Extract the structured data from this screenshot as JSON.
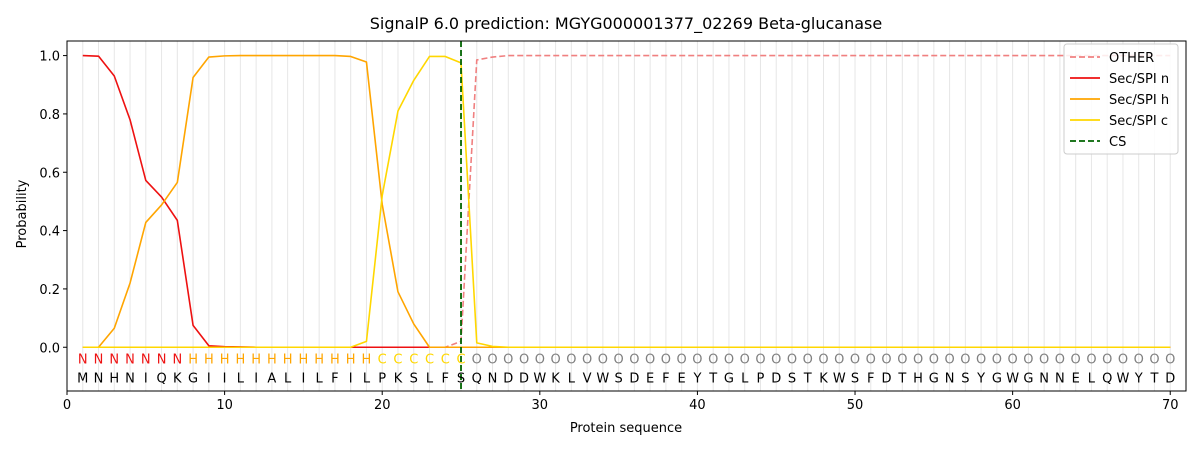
{
  "chart_data": {
    "type": "line",
    "title": "SignalP 6.0 prediction: MGYG000001377_02269 Beta-glucanase",
    "xlabel": "Protein sequence",
    "ylabel": "Probability",
    "xlim": [
      0,
      71
    ],
    "ylim": [
      -0.15,
      1.05
    ],
    "xticks": [
      0,
      10,
      20,
      30,
      40,
      50,
      60,
      70
    ],
    "yticks": [
      0.0,
      0.2,
      0.4,
      0.6,
      0.8,
      1.0
    ],
    "legend_position": "top-right",
    "sequence": [
      "M",
      "N",
      "H",
      "N",
      "I",
      "Q",
      "K",
      "G",
      "I",
      "I",
      "L",
      "I",
      "A",
      "L",
      "I",
      "L",
      "F",
      "I",
      "L",
      "P",
      "K",
      "S",
      "L",
      "F",
      "S",
      "Q",
      "N",
      "D",
      "D",
      "W",
      "K",
      "L",
      "V",
      "W",
      "S",
      "D",
      "E",
      "F",
      "E",
      "Y",
      "T",
      "G",
      "L",
      "P",
      "D",
      "S",
      "T",
      "K",
      "W",
      "S",
      "F",
      "D",
      "T",
      "H",
      "G",
      "N",
      "S",
      "Y",
      "G",
      "W",
      "G",
      "N",
      "N",
      "E",
      "L",
      "Q",
      "W",
      "Y",
      "T",
      "D"
    ],
    "labels": [
      "N",
      "N",
      "N",
      "N",
      "N",
      "N",
      "N",
      "H",
      "H",
      "H",
      "H",
      "H",
      "H",
      "H",
      "H",
      "H",
      "H",
      "H",
      "H",
      "C",
      "C",
      "C",
      "C",
      "C",
      "C",
      "O",
      "O",
      "O",
      "O",
      "O",
      "O",
      "O",
      "O",
      "O",
      "O",
      "O",
      "O",
      "O",
      "O",
      "O",
      "O",
      "O",
      "O",
      "O",
      "O",
      "O",
      "O",
      "O",
      "O",
      "O",
      "O",
      "O",
      "O",
      "O",
      "O",
      "O",
      "O",
      "O",
      "O",
      "O",
      "O",
      "O",
      "O",
      "O",
      "O",
      "O",
      "O",
      "O",
      "O",
      "O"
    ],
    "label_colors": {
      "N": "#ee1111",
      "H": "#ffa500",
      "C": "#ffd700",
      "O": "#808080"
    },
    "series": [
      {
        "name": "OTHER",
        "color": "#f08080",
        "dash": "dashed",
        "values": [
          0,
          0,
          0,
          0,
          0,
          0,
          0,
          0,
          0,
          0,
          0,
          0,
          0,
          0,
          0,
          0,
          0,
          0,
          0,
          0,
          0,
          0,
          0,
          0,
          0.02,
          0.985,
          0.995,
          1,
          1,
          1,
          1,
          1,
          1,
          1,
          1,
          1,
          1,
          1,
          1,
          1,
          1,
          1,
          1,
          1,
          1,
          1,
          1,
          1,
          1,
          1,
          1,
          1,
          1,
          1,
          1,
          1,
          1,
          1,
          1,
          1,
          1,
          1,
          1,
          1,
          1,
          1,
          1,
          1,
          1,
          1
        ]
      },
      {
        "name": "Sec/SPI n",
        "color": "#ee1111",
        "dash": "solid",
        "values": [
          1,
          0.998,
          0.93,
          0.78,
          0.572,
          0.515,
          0.435,
          0.075,
          0.005,
          0.002,
          0.001,
          0,
          0,
          0,
          0,
          0,
          0,
          0,
          0,
          0,
          0,
          0,
          0,
          0,
          0,
          0,
          0,
          0,
          0,
          0,
          0,
          0,
          0,
          0,
          0,
          0,
          0,
          0,
          0,
          0,
          0,
          0,
          0,
          0,
          0,
          0,
          0,
          0,
          0,
          0,
          0,
          0,
          0,
          0,
          0,
          0,
          0,
          0,
          0,
          0,
          0,
          0,
          0,
          0,
          0,
          0,
          0,
          0,
          0,
          0
        ]
      },
      {
        "name": "Sec/SPI h",
        "color": "#ffa500",
        "dash": "solid",
        "values": [
          0,
          0,
          0.065,
          0.22,
          0.428,
          0.488,
          0.565,
          0.925,
          0.995,
          0.999,
          1,
          1,
          1,
          1,
          1,
          1,
          1,
          0.997,
          0.978,
          0.49,
          0.19,
          0.08,
          0,
          0,
          0,
          0,
          0,
          0,
          0,
          0,
          0,
          0,
          0,
          0,
          0,
          0,
          0,
          0,
          0,
          0,
          0,
          0,
          0,
          0,
          0,
          0,
          0,
          0,
          0,
          0,
          0,
          0,
          0,
          0,
          0,
          0,
          0,
          0,
          0,
          0,
          0,
          0,
          0,
          0,
          0,
          0,
          0,
          0,
          0,
          0
        ]
      },
      {
        "name": "Sec/SPI c",
        "color": "#ffd700",
        "dash": "solid",
        "values": [
          0,
          0,
          0,
          0,
          0,
          0,
          0,
          0,
          0,
          0,
          0,
          0,
          0,
          0,
          0,
          0,
          0,
          0,
          0.02,
          0.52,
          0.81,
          0.915,
          0.997,
          0.997,
          0.975,
          0.015,
          0.003,
          0,
          0,
          0,
          0,
          0,
          0,
          0,
          0,
          0,
          0,
          0,
          0,
          0,
          0,
          0,
          0,
          0,
          0,
          0,
          0,
          0,
          0,
          0,
          0,
          0,
          0,
          0,
          0,
          0,
          0,
          0,
          0,
          0,
          0,
          0,
          0,
          0,
          0,
          0,
          0,
          0,
          0,
          0
        ]
      }
    ],
    "cs": {
      "name": "CS",
      "x": 25,
      "color": "#006400"
    }
  }
}
